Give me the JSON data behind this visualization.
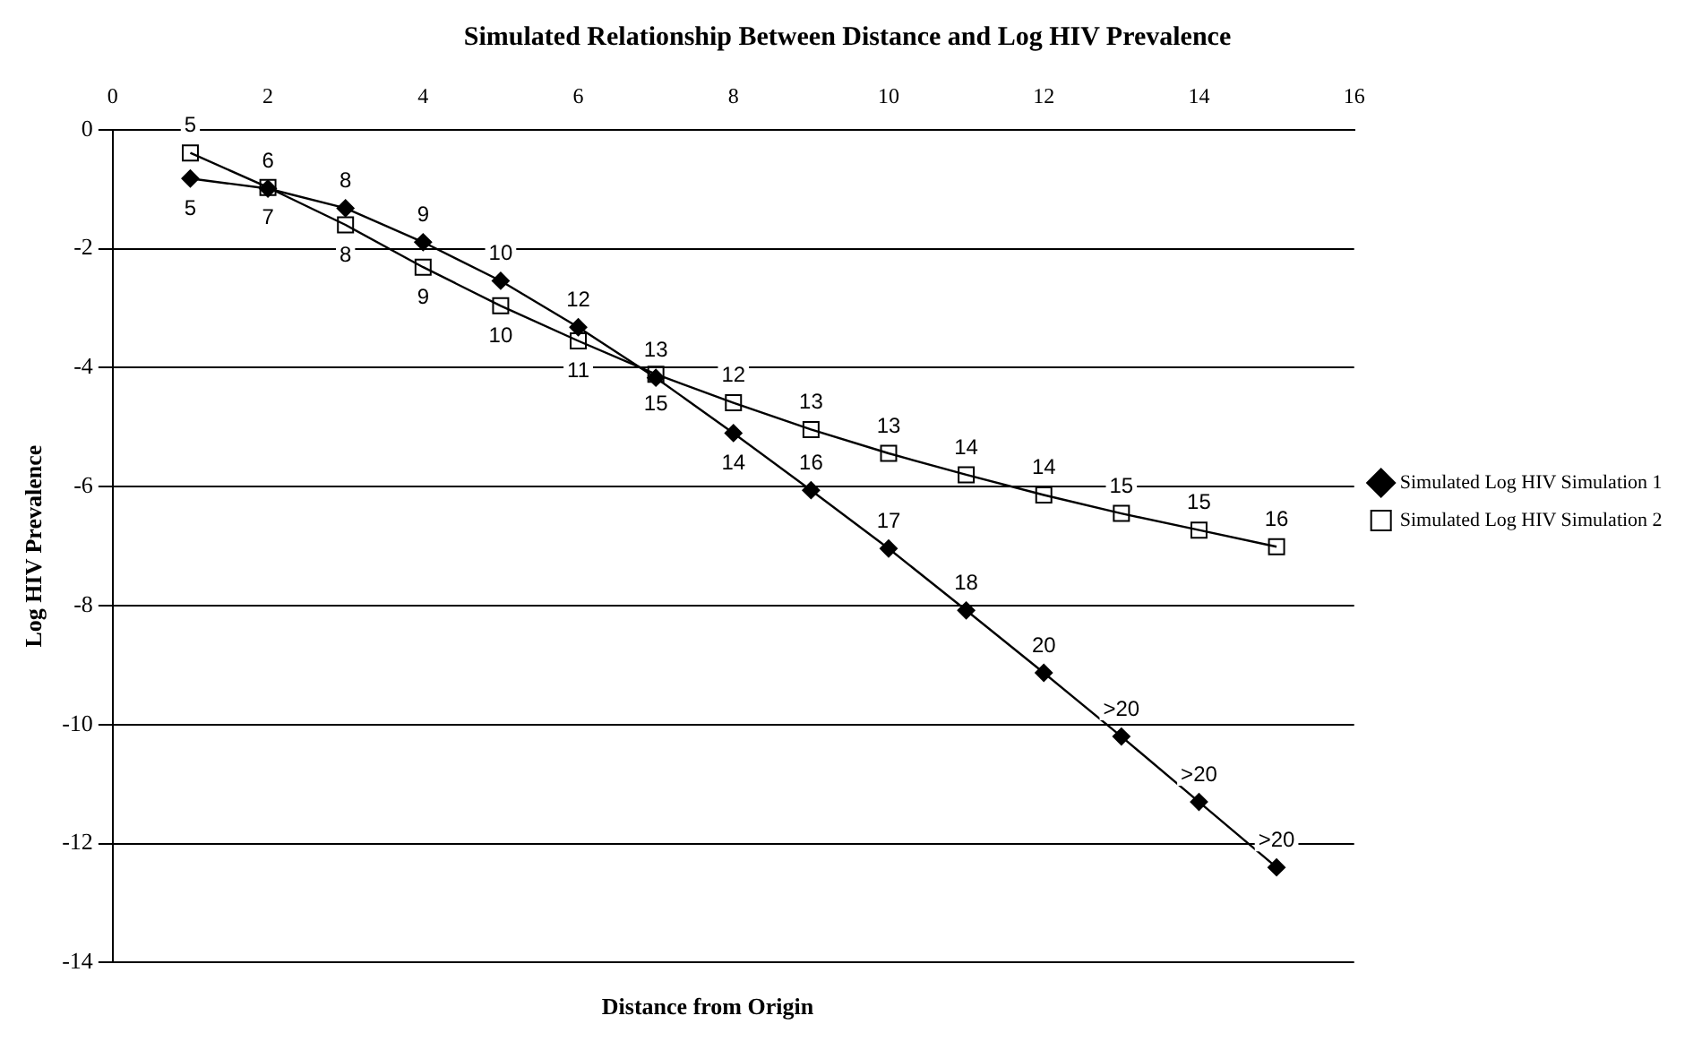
{
  "chart_data": {
    "type": "line",
    "title": "Simulated Relationship Between Distance and Log HIV Prevalence",
    "xlabel": "Distance from Origin",
    "ylabel": "Log HIV Prevalence",
    "x": [
      1,
      2,
      3,
      4,
      5,
      6,
      7,
      8,
      9,
      10,
      11,
      12,
      13,
      14,
      15
    ],
    "series": [
      {
        "name": "Simulated Log HIV Simulation 1",
        "color": "#000000",
        "marker": "diamond",
        "values": [
          -0.82,
          -0.99,
          -1.32,
          -1.89,
          -2.54,
          -3.32,
          -4.17,
          -5.1,
          -6.06,
          -7.04,
          -8.08,
          -9.13,
          -10.2,
          -11.3,
          -12.4
        ]
      },
      {
        "name": "Simulated Log HIV Simulation 2",
        "color": "#000000",
        "marker": "square",
        "values": [
          -0.39,
          -0.97,
          -1.6,
          -2.31,
          -2.96,
          -3.55,
          -4.11,
          -4.59,
          -5.04,
          -5.44,
          -5.8,
          -6.14,
          -6.45,
          -6.73,
          -7.01
        ]
      }
    ],
    "annotations": [
      {
        "text": "5",
        "x": 1,
        "y": -0.82
      },
      {
        "text": "6",
        "x": 2,
        "y": -0.99
      },
      {
        "text": "8",
        "x": 3,
        "y": -1.32
      },
      {
        "text": "9",
        "x": 4,
        "y": -1.89
      },
      {
        "text": "10",
        "x": 5,
        "y": -2.54
      },
      {
        "text": "12",
        "x": 6,
        "y": -3.32
      },
      {
        "text": "13",
        "x": 7,
        "y": -4.17
      },
      {
        "text": "14",
        "x": 8,
        "y": -5.1
      },
      {
        "text": "16",
        "x": 9,
        "y": -6.06
      },
      {
        "text": "17",
        "x": 10,
        "y": -7.04
      },
      {
        "text": "18",
        "x": 11,
        "y": -8.08
      },
      {
        "text": "20",
        "x": 12,
        "y": -9.13
      },
      {
        "text": ">20",
        "x": 13,
        "y": -10.2
      },
      {
        "text": ">20",
        "x": 14,
        "y": -11.3
      },
      {
        "text": ">20",
        "x": 15,
        "y": -12.4
      },
      {
        "text": "5",
        "x": 1,
        "y": -0.39
      },
      {
        "text": "7",
        "x": 2,
        "y": -0.97
      },
      {
        "text": "8",
        "x": 3,
        "y": -1.6
      },
      {
        "text": "9",
        "x": 4,
        "y": -2.31
      },
      {
        "text": "10",
        "x": 5,
        "y": -2.96
      },
      {
        "text": "11",
        "x": 6,
        "y": -3.55
      },
      {
        "text": "15",
        "x": 7,
        "y": -4.11
      },
      {
        "text": "12",
        "x": 8,
        "y": -4.59
      },
      {
        "text": "13",
        "x": 9,
        "y": -5.04
      },
      {
        "text": "13",
        "x": 10,
        "y": -5.44
      },
      {
        "text": "14",
        "x": 11,
        "y": -5.8
      },
      {
        "text": "14",
        "x": 12,
        "y": -6.14
      },
      {
        "text": "15",
        "x": 13,
        "y": -6.45
      },
      {
        "text": "15",
        "x": 14,
        "y": -6.73
      },
      {
        "text": "16",
        "x": 15,
        "y": -7.01
      }
    ],
    "xlim": [
      0,
      16
    ],
    "xticks": [
      0,
      2,
      4,
      6,
      8,
      10,
      12,
      14,
      16
    ],
    "ylim": [
      -14,
      0
    ],
    "yticks": [
      -14,
      -12,
      -10,
      -8,
      -6,
      -4,
      -2,
      0
    ],
    "grid": "y",
    "legend": "right",
    "line_style": "solid"
  }
}
